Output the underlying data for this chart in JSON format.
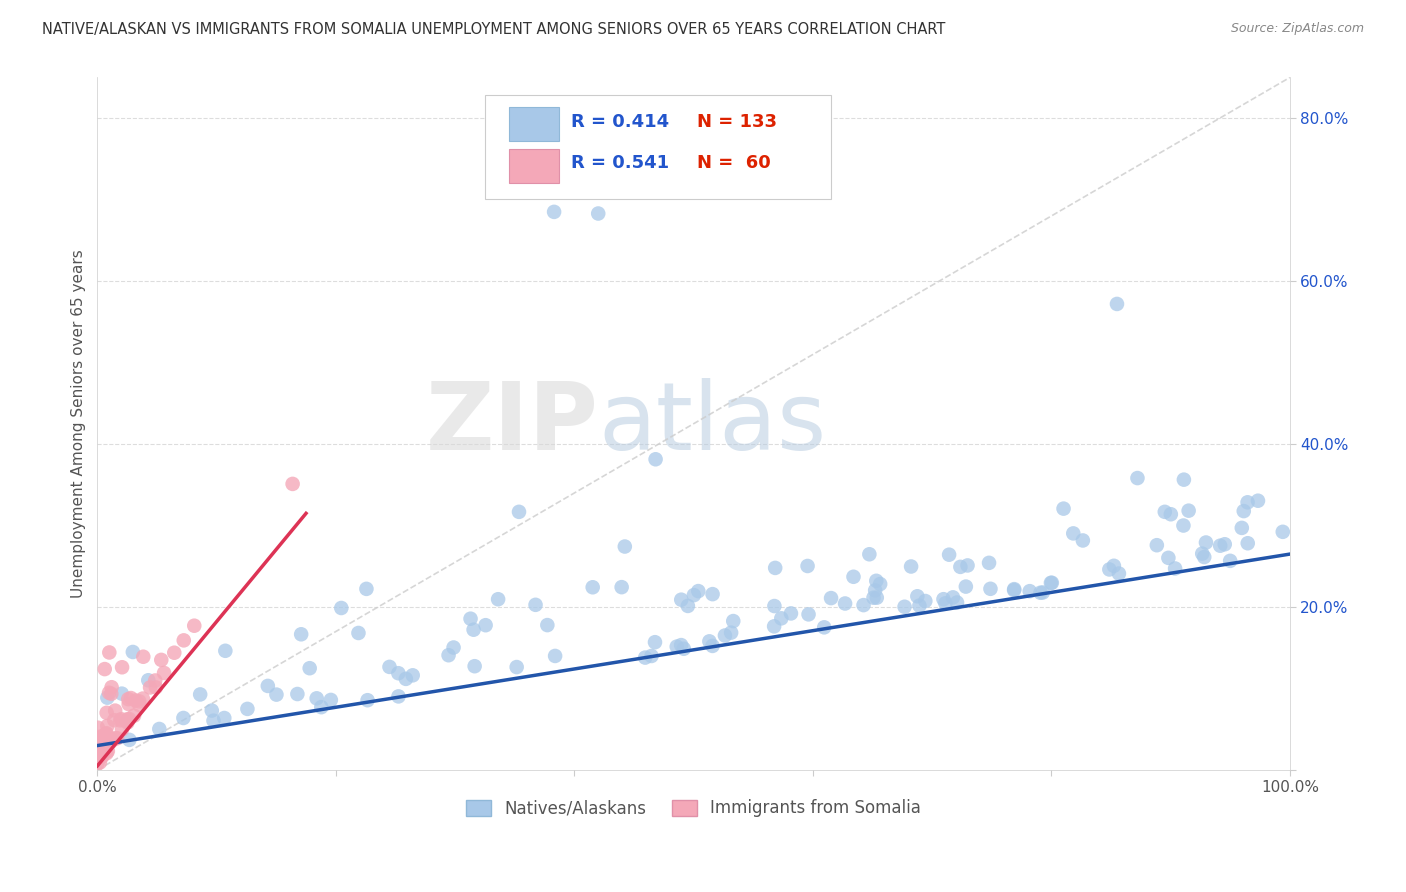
{
  "title": "NATIVE/ALASKAN VS IMMIGRANTS FROM SOMALIA UNEMPLOYMENT AMONG SENIORS OVER 65 YEARS CORRELATION CHART",
  "source": "Source: ZipAtlas.com",
  "ylabel": "Unemployment Among Seniors over 65 years",
  "xlim": [
    0,
    1.0
  ],
  "ylim": [
    0,
    0.85
  ],
  "native_R": 0.414,
  "native_N": 133,
  "somalia_R": 0.541,
  "somalia_N": 60,
  "native_color": "#a8c8e8",
  "somalia_color": "#f4a8b8",
  "native_line_color": "#2255aa",
  "somalia_line_color": "#dd3355",
  "diagonal_color": "#cccccc",
  "watermark_zip": "ZIP",
  "watermark_atlas": "atlas",
  "background_color": "#ffffff",
  "legend_label_native": "Natives/Alaskans",
  "legend_label_somalia": "Immigrants from Somalia",
  "grid_color": "#dddddd",
  "r_n_color": "#2255cc",
  "n_color": "#dd2200",
  "title_color": "#333333",
  "source_color": "#888888",
  "ylabel_color": "#555555",
  "tick_color": "#2255cc",
  "native_line_x0": 0.0,
  "native_line_y0": 0.03,
  "native_line_x1": 1.0,
  "native_line_y1": 0.265,
  "somalia_line_x0": 0.0,
  "somalia_line_y0": 0.005,
  "somalia_line_x1": 0.175,
  "somalia_line_y1": 0.315
}
